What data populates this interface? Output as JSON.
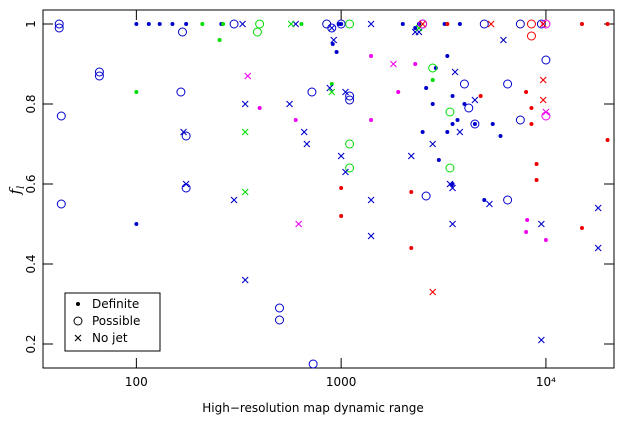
{
  "chart_data": {
    "type": "scatter",
    "x_label": "High−resolution map dynamic range",
    "y_label": {
      "text": "f",
      "sub": "l"
    },
    "log_x": true,
    "xlim": [
      35,
      21500
    ],
    "ylim": [
      0.14,
      1.035
    ],
    "xticks": [
      100,
      1000,
      {
        "value": 10000,
        "label": "10⁴"
      }
    ],
    "yticks": [
      0.2,
      0.4,
      0.6,
      0.8,
      1
    ],
    "legend_position": "lower left",
    "series": [
      {
        "name": "Definite",
        "marker": "dot",
        "legend_color": "#000000",
        "groups": [
          {
            "color": "#0000cc",
            "x": [
              100,
              115,
              130,
              150,
              175,
              260,
              980,
              2000,
              2400,
              3200,
              3800,
              100,
              910,
              950,
              2300,
              1000,
              2600,
              2800,
              2500,
              3000,
              3300,
              3500,
              2900,
              3300,
              3500,
              3700,
              4000,
              4500,
              5000,
              5500,
              3500,
              6000
            ],
            "values": [
              1.0,
              1.0,
              1.0,
              1.0,
              1.0,
              1.0,
              1.0,
              1.0,
              1.0,
              1.0,
              1.0,
              0.5,
              0.95,
              0.93,
              0.99,
              1.0,
              0.84,
              0.8,
              0.73,
              0.66,
              0.73,
              0.75,
              0.89,
              0.92,
              0.82,
              0.76,
              0.8,
              0.75,
              0.56,
              0.75,
              0.6,
              0.72
            ]
          },
          {
            "color": "#00dd00",
            "x": [
              100,
              210,
              255,
              265,
              640,
              900,
              2800
            ],
            "values": [
              0.83,
              1.0,
              0.96,
              1.0,
              1.0,
              0.85,
              0.86
            ]
          },
          {
            "color": "#ee00ee",
            "x": [
              400,
              600,
              1400,
              1900,
              1400,
              8000,
              8100,
              10000,
              2300
            ],
            "values": [
              0.79,
              0.76,
              0.76,
              0.83,
              0.92,
              0.48,
              0.51,
              0.46,
              0.9
            ]
          },
          {
            "color": "#ee0000",
            "x": [
              1000,
              1000,
              2200,
              2200,
              4800,
              8000,
              8500,
              8500,
              9000,
              9000,
              15000,
              20000,
              20000,
              15000,
              3300
            ],
            "values": [
              0.59,
              0.52,
              0.58,
              0.44,
              0.82,
              0.83,
              0.75,
              0.79,
              0.65,
              0.61,
              1.0,
              1.0,
              0.71,
              0.49,
              1.0
            ]
          }
        ]
      },
      {
        "name": "Possible",
        "marker": "circle",
        "legend_color": "#000000",
        "groups": [
          {
            "color": "#0000cc",
            "x": [
              42,
              42,
              43,
              43,
              66,
              66,
              165,
              168,
              175,
              175,
              300,
              500,
              500,
              720,
              730,
              850,
              900,
              1000,
              1100,
              1100,
              2600,
              2500,
              4000,
              4200,
              4500,
              6500,
              6500,
              7500,
              7500,
              10000,
              9500,
              5000
            ],
            "values": [
              1.0,
              0.99,
              0.77,
              0.55,
              0.88,
              0.87,
              0.83,
              0.98,
              0.72,
              0.59,
              1.0,
              0.29,
              0.26,
              0.83,
              0.15,
              1.0,
              0.99,
              1.0,
              0.82,
              0.81,
              0.57,
              1.0,
              0.85,
              0.79,
              0.75,
              0.85,
              0.56,
              1.0,
              0.76,
              0.91,
              1.0,
              1.0
            ]
          },
          {
            "color": "#00dd00",
            "x": [
              390,
              400,
              1100,
              1100,
              1100,
              2800,
              3400,
              3400
            ],
            "values": [
              0.98,
              1.0,
              1.0,
              0.64,
              0.7,
              0.89,
              0.78,
              0.64
            ]
          },
          {
            "color": "#ee00ee",
            "x": [
              10000,
              10000,
              2500
            ],
            "values": [
              0.77,
              1.0,
              1.0
            ]
          },
          {
            "color": "#ee0000",
            "x": [
              8500,
              8500
            ],
            "values": [
              0.97,
              1.0
            ]
          }
        ]
      },
      {
        "name": "No jet",
        "marker": "cross",
        "legend_color": "#000000",
        "groups": [
          {
            "color": "#0000cc",
            "x": [
              170,
              175,
              300,
              330,
              340,
              340,
              560,
              600,
              660,
              680,
              880,
              900,
              920,
              1000,
              1050,
              1050,
              1400,
              1400,
              1400,
              2200,
              2400,
              2800,
              3500,
              3500,
              3600,
              3800,
              4500,
              5300,
              6200,
              9500,
              9500,
              18000,
              18000,
              2300,
              3400
            ],
            "values": [
              0.73,
              0.6,
              0.56,
              1.0,
              0.8,
              0.36,
              0.8,
              1.0,
              0.73,
              0.7,
              0.84,
              0.99,
              0.96,
              0.67,
              0.63,
              0.83,
              1.0,
              0.56,
              0.47,
              0.67,
              0.98,
              0.7,
              0.59,
              0.5,
              0.88,
              0.73,
              0.81,
              0.55,
              0.96,
              0.5,
              0.21,
              0.54,
              0.44,
              0.98,
              0.6
            ]
          },
          {
            "color": "#00dd00",
            "x": [
              340,
              340,
              900,
              570,
              2400
            ],
            "values": [
              0.73,
              0.58,
              0.83,
              1.0,
              0.99
            ]
          },
          {
            "color": "#ee00ee",
            "x": [
              350,
              620,
              1800,
              10000
            ],
            "values": [
              0.87,
              0.5,
              0.9,
              0.78
            ]
          },
          {
            "color": "#ee0000",
            "x": [
              2500,
              2800,
              5400,
              9700,
              9700,
              9700
            ],
            "values": [
              1.0,
              0.33,
              1.0,
              0.86,
              0.81,
              1.0
            ]
          }
        ]
      }
    ]
  }
}
